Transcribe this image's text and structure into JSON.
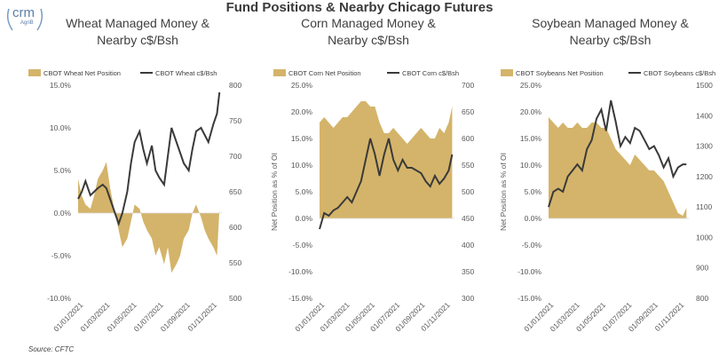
{
  "header": {
    "logo_text": "crm",
    "logo_sub": "AgriB",
    "title": "Fund Positions & Nearby Chicago Futures",
    "source": "Source: CFTC"
  },
  "chart_data": [
    {
      "type": "area",
      "title_line1": "Wheat Managed Money &",
      "title_line2": "Nearby c$/Bsh",
      "ylabel": "",
      "legend": [
        "CBOT Wheat Net Position",
        "CBOT Wheat c$/Bsh"
      ],
      "legend_position": "top",
      "y_left_ticks": [
        "15.0%",
        "10.0%",
        "5.0%",
        "0.0%",
        "-5.0%",
        "-10.0%"
      ],
      "y_left_range": [
        -10,
        15
      ],
      "y_right_ticks": [
        "800",
        "750",
        "700",
        "650",
        "600",
        "550",
        "500"
      ],
      "y_right_range": [
        500,
        800
      ],
      "x_ticks": [
        "01/01/2021",
        "01/03/2021",
        "01/05/2021",
        "01/07/2021",
        "01/09/2021",
        "01/11/2021"
      ],
      "x_range": [
        0,
        11.7
      ],
      "series": [
        {
          "name": "CBOT Wheat Net Position",
          "kind": "area",
          "color": "#d4b46a",
          "x": [
            0,
            0.3,
            0.6,
            1,
            1.3,
            1.6,
            2,
            2.3,
            2.6,
            3,
            3.3,
            3.6,
            4,
            4.3,
            4.6,
            5,
            5.3,
            5.6,
            6,
            6.3,
            6.6,
            7,
            7.3,
            7.6,
            8,
            8.3,
            8.6,
            9,
            9.3,
            9.6,
            10,
            10.3,
            10.6,
            11,
            11.3,
            11.5
          ],
          "y": [
            4,
            2,
            1,
            0.5,
            2,
            4,
            5,
            6,
            3,
            0,
            -2,
            -4,
            -3,
            -1,
            1,
            0.5,
            -1,
            -2,
            -3,
            -5,
            -4,
            -6,
            -4,
            -7,
            -6,
            -5,
            -3,
            -2,
            0,
            1,
            -0.5,
            -2,
            -3,
            -4,
            -5,
            0.5
          ]
        },
        {
          "name": "CBOT Wheat c$/Bsh",
          "kind": "line",
          "color": "#3a3a3a",
          "x": [
            0,
            0.3,
            0.6,
            1,
            1.3,
            1.6,
            2,
            2.3,
            2.6,
            3,
            3.3,
            3.6,
            4,
            4.3,
            4.6,
            5,
            5.3,
            5.6,
            6,
            6.3,
            6.6,
            7,
            7.3,
            7.6,
            8,
            8.3,
            8.6,
            9,
            9.3,
            9.6,
            10,
            10.3,
            10.6,
            11,
            11.3,
            11.5
          ],
          "y": [
            640,
            650,
            665,
            645,
            650,
            655,
            660,
            655,
            640,
            620,
            605,
            620,
            650,
            690,
            720,
            735,
            710,
            690,
            715,
            680,
            670,
            660,
            700,
            740,
            720,
            705,
            690,
            680,
            710,
            735,
            740,
            730,
            720,
            745,
            760,
            790
          ]
        }
      ]
    },
    {
      "type": "area",
      "title_line1": "Corn Managed Money &",
      "title_line2": "Nearby c$/Bsh",
      "ylabel": "Net Position as % of OI",
      "legend": [
        "CBOT Corn Net Position",
        "CBOT Corn c$/Bsh"
      ],
      "legend_position": "top",
      "y_left_ticks": [
        "25.0%",
        "20.0%",
        "15.0%",
        "10.0%",
        "5.0%",
        "0.0%",
        "-5.0%",
        "-10.0%",
        "-15.0%"
      ],
      "y_left_range": [
        -15,
        25
      ],
      "y_right_ticks": [
        "700",
        "650",
        "600",
        "550",
        "500",
        "450",
        "400",
        "350",
        "300"
      ],
      "y_right_range": [
        300,
        700
      ],
      "x_ticks": [
        "01/01/2021",
        "01/03/2021",
        "01/05/2021",
        "01/07/2021",
        "01/09/2021",
        "01/11/2021"
      ],
      "x_range": [
        0,
        11.7
      ],
      "series": [
        {
          "name": "CBOT Corn Net Position",
          "kind": "area",
          "color": "#d4b46a",
          "x": [
            0,
            0.4,
            0.8,
            1.2,
            1.6,
            2,
            2.4,
            2.8,
            3.2,
            3.6,
            4,
            4.4,
            4.8,
            5.2,
            5.6,
            6,
            6.4,
            6.8,
            7.2,
            7.6,
            8,
            8.4,
            8.8,
            9.2,
            9.6,
            10,
            10.4,
            10.8,
            11.2,
            11.5
          ],
          "y": [
            18,
            19,
            18,
            17,
            18,
            19,
            19,
            20,
            21,
            22,
            22,
            21,
            21,
            18,
            16,
            16,
            17,
            16,
            15,
            14,
            15,
            16,
            17,
            16,
            15,
            15,
            17,
            16,
            18,
            21
          ]
        },
        {
          "name": "CBOT Corn c$/Bsh",
          "kind": "line",
          "color": "#3a3a3a",
          "x": [
            0,
            0.4,
            0.8,
            1.2,
            1.6,
            2,
            2.4,
            2.8,
            3.2,
            3.6,
            4,
            4.4,
            4.8,
            5.2,
            5.6,
            6,
            6.4,
            6.8,
            7.2,
            7.6,
            8,
            8.4,
            8.8,
            9.2,
            9.6,
            10,
            10.4,
            10.8,
            11.2,
            11.5
          ],
          "y": [
            430,
            460,
            455,
            465,
            470,
            480,
            490,
            480,
            500,
            520,
            560,
            600,
            570,
            530,
            570,
            600,
            560,
            540,
            560,
            545,
            545,
            540,
            535,
            520,
            510,
            530,
            515,
            525,
            540,
            570
          ]
        }
      ]
    },
    {
      "type": "area",
      "title_line1": "Soybean Managed Money &",
      "title_line2": "Nearby c$/Bsh",
      "ylabel": "Net Position as % of OI",
      "legend": [
        "CBOT Soybeans Net Position",
        "CBOT Soybeans c$/Bsh"
      ],
      "legend_position": "top",
      "y_left_ticks": [
        "25.0%",
        "20.0%",
        "15.0%",
        "10.0%",
        "5.0%",
        "0.0%",
        "-5.0%",
        "-10.0%",
        "-15.0%"
      ],
      "y_left_range": [
        -15,
        25
      ],
      "y_right_ticks": [
        "1500",
        "1400",
        "1300",
        "1200",
        "1100",
        "1000",
        "900",
        "800"
      ],
      "y_right_range": [
        800,
        1500
      ],
      "x_ticks": [
        "01/01/2021",
        "01/03/2021",
        "01/05/2021",
        "01/07/2021",
        "01/09/2021",
        "01/11/2021"
      ],
      "x_range": [
        0,
        11.7
      ],
      "series": [
        {
          "name": "CBOT Soybeans Net Position",
          "kind": "area",
          "color": "#d4b46a",
          "x": [
            0,
            0.4,
            0.8,
            1.2,
            1.6,
            2,
            2.4,
            2.8,
            3.2,
            3.6,
            4,
            4.4,
            4.8,
            5.2,
            5.6,
            6,
            6.4,
            6.8,
            7.2,
            7.6,
            8,
            8.4,
            8.8,
            9.2,
            9.6,
            10,
            10.4,
            10.8,
            11.2,
            11.5
          ],
          "y": [
            19,
            18,
            17,
            18,
            17,
            17,
            18,
            17,
            17,
            18,
            18,
            17,
            17,
            15,
            13,
            12,
            11,
            10,
            12,
            11,
            10,
            9,
            9,
            8,
            7,
            5,
            3,
            1,
            0.5,
            2
          ]
        },
        {
          "name": "CBOT Soybeans c$/Bsh",
          "kind": "line",
          "color": "#3a3a3a",
          "x": [
            0,
            0.4,
            0.8,
            1.2,
            1.6,
            2,
            2.4,
            2.8,
            3.2,
            3.6,
            4,
            4.4,
            4.8,
            5.2,
            5.6,
            6,
            6.4,
            6.8,
            7.2,
            7.6,
            8,
            8.4,
            8.8,
            9.2,
            9.6,
            10,
            10.4,
            10.8,
            11.2,
            11.5
          ],
          "y": [
            1100,
            1150,
            1160,
            1150,
            1200,
            1220,
            1240,
            1220,
            1290,
            1320,
            1390,
            1420,
            1350,
            1450,
            1380,
            1300,
            1330,
            1310,
            1360,
            1350,
            1320,
            1290,
            1300,
            1270,
            1230,
            1260,
            1200,
            1230,
            1240,
            1240
          ]
        }
      ]
    }
  ]
}
